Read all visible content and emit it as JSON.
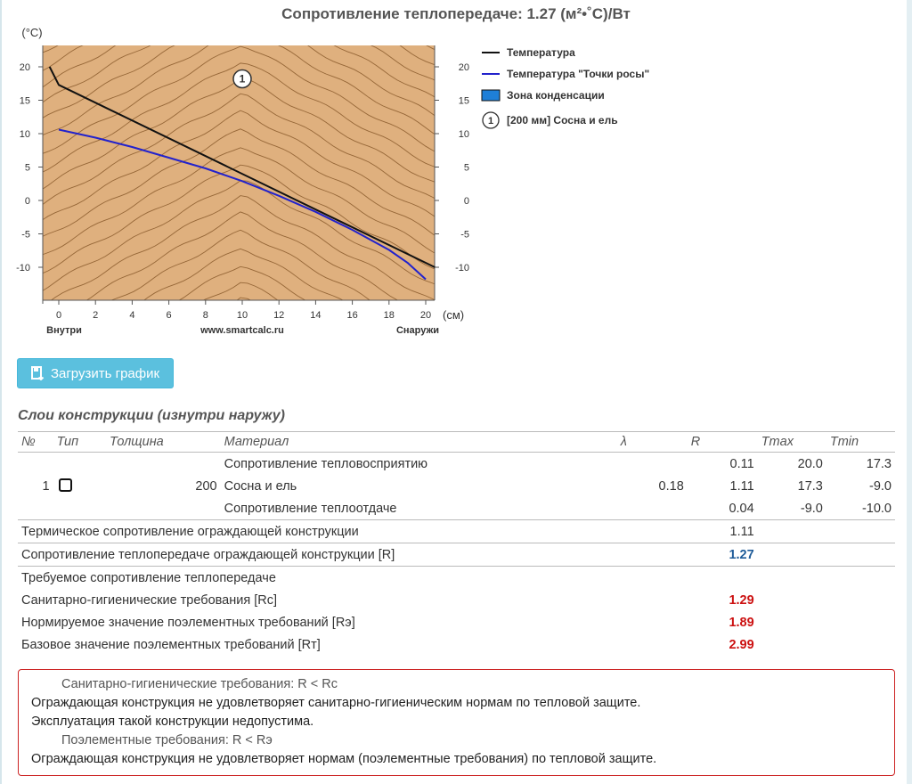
{
  "title": "Сопротивление теплопередаче: 1.27 (м²•˚C)/Вт",
  "chart_data": {
    "type": "line",
    "y_unit": "(°C)",
    "x_unit": "(см)",
    "xlim": [
      0,
      20
    ],
    "ylim": [
      -15,
      20
    ],
    "x_ticks": [
      "0",
      "2",
      "4",
      "6",
      "8",
      "10",
      "12",
      "14",
      "16",
      "18",
      "20"
    ],
    "y_ticks": [
      "20",
      "15",
      "10",
      "5",
      "0",
      "-5",
      "-10"
    ],
    "x_left_label": "Внутри",
    "x_center_label": "www.smartcalc.ru",
    "x_right_label": "Снаружи",
    "layer_marker": "1",
    "series": [
      {
        "name": "Температура",
        "color": "#111111",
        "x": [
          -0.5,
          0,
          20.5
        ],
        "y": [
          20,
          17.3,
          -10
        ]
      },
      {
        "name": "Температура \"Точки росы\"",
        "color": "#2222cc",
        "x": [
          0,
          2,
          4,
          6,
          8,
          10,
          12,
          14,
          16,
          18,
          19,
          20
        ],
        "y": [
          10.6,
          9.4,
          8.0,
          6.4,
          4.8,
          2.9,
          0.7,
          -1.7,
          -4.4,
          -7.4,
          -9.3,
          -11.8
        ]
      }
    ],
    "legend": [
      {
        "label": "Температура",
        "type": "line",
        "color": "#111111"
      },
      {
        "label": "Температура \"Точки росы\"",
        "type": "line",
        "color": "#2222cc"
      },
      {
        "label": "Зона конденсации",
        "type": "box",
        "color": "#1e7fd8"
      },
      {
        "label": "[200 мм] Сосна и ель",
        "type": "marker",
        "marker": "1"
      }
    ],
    "legend_position": "right",
    "fill_color": "#dfb07e",
    "grain_color": "#8a5a2b"
  },
  "button": {
    "label": "Загрузить график"
  },
  "section_title": "Слои конструкции (изнутри наружу)",
  "table": {
    "headers": {
      "n": "№",
      "type": "Тип",
      "thickness": "Толщина",
      "material": "Материал",
      "lambda": "λ",
      "r": "R",
      "tmax": "Tmax",
      "tmin": "Tmin"
    },
    "row_in": {
      "material": "Сопротивление тепловосприятию",
      "r": "0.11",
      "tmax": "20.0",
      "tmin": "17.3"
    },
    "row_layer": {
      "n": "1",
      "thickness": "200",
      "material": "Сосна и ель",
      "lambda": "0.18",
      "r": "1.11",
      "tmax": "17.3",
      "tmin": "-9.0"
    },
    "row_out": {
      "material": "Сопротивление теплоотдаче",
      "r": "0.04",
      "tmax": "-9.0",
      "tmin": "-10.0"
    },
    "thermal": {
      "label": "Термическое сопротивление ограждающей конструкции",
      "value": "1.11"
    },
    "transfer": {
      "label": "Сопротивление теплопередаче ограждающей конструкции [R]",
      "value": "1.27"
    },
    "required": {
      "label": "Требуемое сопротивление теплопередаче"
    },
    "sanitary": {
      "label": "Санитарно-гигиенические требования [Rc]",
      "value": "1.29"
    },
    "normalized": {
      "label": "Нормируемое значение поэлементных требований [Rэ]",
      "value": "1.89"
    },
    "base": {
      "label": "Базовое значение поэлементных требований [Rт]",
      "value": "2.99"
    }
  },
  "alert": {
    "title1": "Санитарно-гигиенические требования: R < Rc",
    "text1a": "Ограждающая конструкция не удовлетворяет санитарно-гигиеническим нормам по тепловой защите.",
    "text1b": "Эксплуатация такой конструкции недопустима.",
    "title2": "Поэлементные требования: R < Rэ",
    "text2": "Ограждающая конструкция не удовлетворяет нормам (поэлементные требования) по тепловой защите."
  }
}
